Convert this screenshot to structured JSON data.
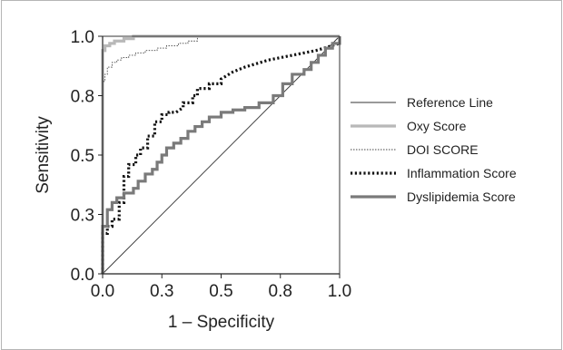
{
  "chart_data": {
    "type": "line",
    "xlabel": "1 – Specificity",
    "ylabel": "Sensitivity",
    "xlim": [
      0.0,
      1.0
    ],
    "ylim": [
      0.0,
      1.0
    ],
    "x_ticks": [
      "0.0",
      "0.3",
      "0.5",
      "0.8",
      "1.0"
    ],
    "y_ticks": [
      "0.0",
      "0.3",
      "0.5",
      "0.8",
      "1.0"
    ],
    "grid": false,
    "legend_position": "right",
    "series": [
      {
        "name": "Reference Line",
        "color": "#333333",
        "style": "thin-solid",
        "x": [
          0.0,
          1.0
        ],
        "y": [
          0.0,
          1.0
        ]
      },
      {
        "name": "Oxy Score",
        "color": "#b8b8b8",
        "style": "thick-solid",
        "x": [
          0.0,
          0.0,
          0.01,
          0.01,
          0.03,
          0.03,
          0.05,
          0.05,
          0.09,
          0.09,
          0.13,
          0.13,
          0.2,
          0.2,
          1.0
        ],
        "y": [
          0.0,
          0.94,
          0.94,
          0.96,
          0.96,
          0.97,
          0.97,
          0.98,
          0.98,
          0.99,
          0.99,
          1.0,
          1.0,
          1.0,
          1.0
        ]
      },
      {
        "name": "DOI SCORE",
        "color": "#444444",
        "style": "thin-dotted",
        "x": [
          0.0,
          0.0,
          0.01,
          0.01,
          0.02,
          0.02,
          0.04,
          0.04,
          0.06,
          0.06,
          0.08,
          0.08,
          0.11,
          0.11,
          0.14,
          0.14,
          0.18,
          0.18,
          0.23,
          0.23,
          0.27,
          0.27,
          0.32,
          0.32,
          0.36,
          0.36,
          0.4,
          0.4,
          1.0
        ],
        "y": [
          0.0,
          0.81,
          0.81,
          0.84,
          0.84,
          0.87,
          0.87,
          0.89,
          0.89,
          0.9,
          0.9,
          0.91,
          0.91,
          0.92,
          0.92,
          0.93,
          0.93,
          0.94,
          0.94,
          0.95,
          0.95,
          0.96,
          0.96,
          0.97,
          0.97,
          0.98,
          0.98,
          1.0,
          1.0
        ]
      },
      {
        "name": "Inflammation Score",
        "color": "#111111",
        "style": "thick-dotted",
        "x": [
          0.0,
          0.0,
          0.02,
          0.02,
          0.04,
          0.04,
          0.07,
          0.07,
          0.09,
          0.09,
          0.11,
          0.11,
          0.14,
          0.14,
          0.16,
          0.16,
          0.19,
          0.19,
          0.22,
          0.22,
          0.25,
          0.25,
          0.28,
          0.28,
          0.31,
          0.34,
          0.34,
          0.38,
          0.38,
          0.4,
          0.4,
          0.45,
          0.45,
          0.5,
          0.5,
          0.55,
          0.6,
          0.7,
          0.8,
          0.9,
          1.0
        ],
        "y": [
          0.0,
          0.17,
          0.17,
          0.2,
          0.2,
          0.23,
          0.23,
          0.3,
          0.3,
          0.41,
          0.41,
          0.46,
          0.46,
          0.5,
          0.5,
          0.53,
          0.53,
          0.58,
          0.58,
          0.64,
          0.64,
          0.67,
          0.67,
          0.68,
          0.68,
          0.7,
          0.72,
          0.72,
          0.75,
          0.75,
          0.78,
          0.78,
          0.8,
          0.8,
          0.82,
          0.85,
          0.87,
          0.9,
          0.92,
          0.94,
          0.97
        ]
      },
      {
        "name": "Dyslipidemia Score",
        "color": "#7a7a7a",
        "style": "thick-solid",
        "x": [
          0.0,
          0.0,
          0.02,
          0.02,
          0.04,
          0.04,
          0.06,
          0.06,
          0.09,
          0.09,
          0.13,
          0.13,
          0.15,
          0.15,
          0.18,
          0.18,
          0.21,
          0.21,
          0.23,
          0.23,
          0.25,
          0.25,
          0.27,
          0.27,
          0.3,
          0.3,
          0.33,
          0.33,
          0.36,
          0.36,
          0.39,
          0.39,
          0.42,
          0.42,
          0.45,
          0.45,
          0.5,
          0.5,
          0.55,
          0.55,
          0.6,
          0.6,
          0.66,
          0.66,
          0.72,
          0.72,
          0.76,
          0.76,
          0.8,
          0.8,
          0.85,
          0.85,
          0.88,
          0.88,
          0.91,
          0.91,
          0.94,
          0.94,
          0.97,
          0.97,
          1.0,
          1.0
        ],
        "y": [
          0.0,
          0.2,
          0.2,
          0.27,
          0.27,
          0.3,
          0.3,
          0.32,
          0.32,
          0.34,
          0.34,
          0.36,
          0.36,
          0.39,
          0.39,
          0.42,
          0.42,
          0.44,
          0.44,
          0.47,
          0.47,
          0.5,
          0.5,
          0.53,
          0.53,
          0.55,
          0.55,
          0.57,
          0.57,
          0.6,
          0.6,
          0.62,
          0.62,
          0.64,
          0.64,
          0.66,
          0.66,
          0.68,
          0.68,
          0.69,
          0.69,
          0.7,
          0.7,
          0.72,
          0.72,
          0.75,
          0.75,
          0.8,
          0.8,
          0.84,
          0.84,
          0.86,
          0.86,
          0.89,
          0.89,
          0.92,
          0.92,
          0.95,
          0.95,
          0.97,
          0.97,
          1.0
        ]
      }
    ]
  }
}
